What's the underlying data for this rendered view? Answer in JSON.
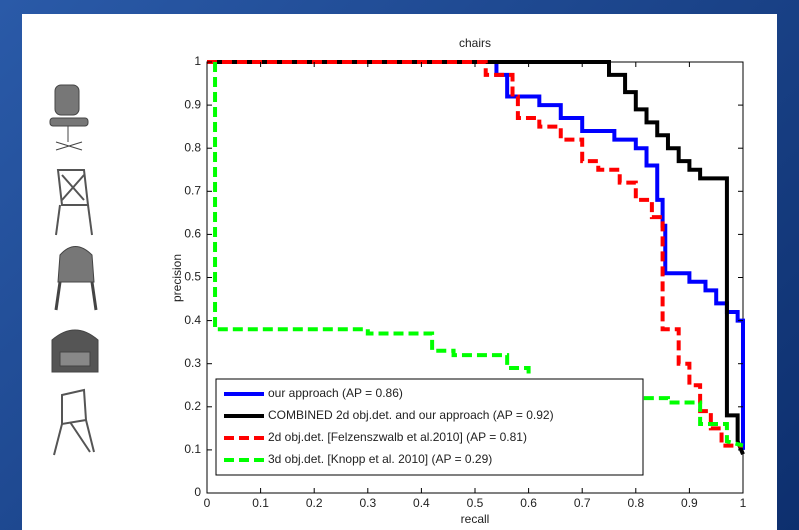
{
  "chart_data": {
    "type": "line",
    "title": "chairs",
    "x_label": "recall",
    "y_label": "precision",
    "xlim": [
      0,
      1
    ],
    "ylim": [
      0,
      1
    ],
    "xticks": [
      0,
      0.1,
      0.2,
      0.3,
      0.4,
      0.5,
      0.6,
      0.7,
      0.8,
      0.9,
      1
    ],
    "yticks": [
      0,
      0.1,
      0.2,
      0.3,
      0.4,
      0.5,
      0.6,
      0.7,
      0.8,
      0.9,
      1
    ],
    "legend": "lower left",
    "series": [
      {
        "name": "our approach (AP = 0.86)",
        "color": "#0000ff",
        "dashed": false,
        "x": [
          0,
          0.54,
          0.54,
          0.56,
          0.56,
          0.62,
          0.62,
          0.66,
          0.66,
          0.7,
          0.7,
          0.76,
          0.76,
          0.8,
          0.8,
          0.82,
          0.82,
          0.84,
          0.84,
          0.85,
          0.85,
          0.855,
          0.855,
          0.9,
          0.9,
          0.93,
          0.93,
          0.95,
          0.95,
          0.97,
          0.97,
          0.99,
          0.99,
          1,
          1
        ],
        "values": [
          1,
          1,
          0.97,
          0.97,
          0.92,
          0.92,
          0.9,
          0.9,
          0.87,
          0.87,
          0.84,
          0.84,
          0.82,
          0.82,
          0.8,
          0.8,
          0.76,
          0.76,
          0.68,
          0.68,
          0.62,
          0.62,
          0.51,
          0.51,
          0.49,
          0.49,
          0.47,
          0.47,
          0.44,
          0.44,
          0.42,
          0.42,
          0.4,
          0.4,
          0.1
        ]
      },
      {
        "name": "COMBINED 2d obj.det. and our approach (AP = 0.92)",
        "color": "#000000",
        "dashed": false,
        "x": [
          0,
          0.75,
          0.75,
          0.78,
          0.78,
          0.8,
          0.8,
          0.82,
          0.82,
          0.84,
          0.84,
          0.86,
          0.86,
          0.88,
          0.88,
          0.9,
          0.9,
          0.92,
          0.92,
          0.97,
          0.97,
          0.99,
          0.99,
          1
        ],
        "values": [
          1,
          1,
          0.97,
          0.97,
          0.93,
          0.93,
          0.89,
          0.89,
          0.86,
          0.86,
          0.83,
          0.83,
          0.8,
          0.8,
          0.77,
          0.77,
          0.75,
          0.75,
          0.73,
          0.73,
          0.18,
          0.18,
          0.12,
          0.09
        ]
      },
      {
        "name": "2d obj.det. [Felzenszwalb et al.2010] (AP = 0.81)",
        "color": "#ff0000",
        "dashed": true,
        "x": [
          0,
          0.52,
          0.52,
          0.57,
          0.57,
          0.58,
          0.58,
          0.62,
          0.62,
          0.66,
          0.66,
          0.7,
          0.7,
          0.73,
          0.73,
          0.77,
          0.77,
          0.8,
          0.8,
          0.83,
          0.83,
          0.85,
          0.85,
          0.88,
          0.88,
          0.9,
          0.9,
          0.92,
          0.92,
          0.94,
          0.94,
          0.96,
          0.96,
          1
        ],
        "values": [
          1,
          1,
          0.97,
          0.97,
          0.92,
          0.92,
          0.87,
          0.87,
          0.85,
          0.85,
          0.82,
          0.82,
          0.77,
          0.77,
          0.75,
          0.75,
          0.72,
          0.72,
          0.68,
          0.68,
          0.64,
          0.64,
          0.38,
          0.38,
          0.3,
          0.3,
          0.25,
          0.25,
          0.19,
          0.19,
          0.15,
          0.15,
          0.11,
          0.11
        ]
      },
      {
        "name": "3d obj.det. [Knopp et al. 2010] (AP = 0.29)",
        "color": "#00ff00",
        "dashed": true,
        "x": [
          0.015,
          0.015,
          0.3,
          0.3,
          0.42,
          0.42,
          0.46,
          0.46,
          0.56,
          0.56,
          0.6,
          0.6,
          0.68,
          0.68,
          0.75,
          0.75,
          0.86,
          0.86,
          0.92,
          0.92,
          0.97,
          0.97,
          1
        ],
        "values": [
          1,
          0.38,
          0.38,
          0.37,
          0.37,
          0.33,
          0.33,
          0.32,
          0.32,
          0.29,
          0.29,
          0.26,
          0.26,
          0.24,
          0.24,
          0.22,
          0.22,
          0.21,
          0.21,
          0.16,
          0.16,
          0.12,
          0.11
        ]
      }
    ]
  }
}
